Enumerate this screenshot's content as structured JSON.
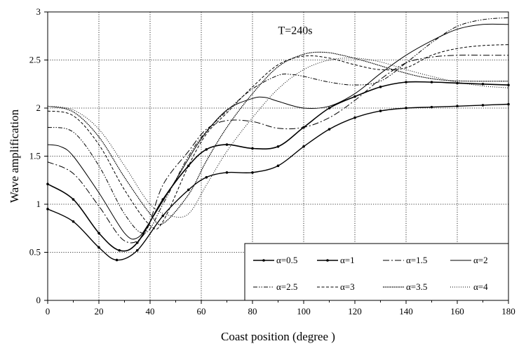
{
  "chart_data": {
    "type": "line",
    "title": "",
    "annotation": "T=240s",
    "xlabel": "Coast position (degree )",
    "ylabel": "Wave amplification",
    "xlim": [
      0,
      180
    ],
    "ylim": [
      0,
      3
    ],
    "xticks": [
      0,
      20,
      40,
      60,
      80,
      100,
      120,
      140,
      160,
      180
    ],
    "yticks": [
      0,
      0.5,
      1,
      1.5,
      2,
      2.5,
      3
    ],
    "xtick_labels": [
      "0",
      "20",
      "40",
      "60",
      "80",
      "100",
      "120",
      "140",
      "160",
      "180"
    ],
    "ytick_labels": [
      "0",
      "0.5",
      "1",
      "1.5",
      "2",
      "2.5",
      "3"
    ],
    "grid": true,
    "legend_position": "bottom-right",
    "series": [
      {
        "name": "α=0.5",
        "style": "solid-marker",
        "x": [
          0,
          10,
          20,
          27,
          35,
          45,
          55,
          62,
          70,
          80,
          90,
          100,
          110,
          120,
          130,
          140,
          150,
          160,
          170,
          180
        ],
        "y": [
          0.95,
          0.82,
          0.55,
          0.42,
          0.52,
          0.88,
          1.15,
          1.28,
          1.33,
          1.33,
          1.4,
          1.6,
          1.78,
          1.9,
          1.97,
          2.0,
          2.01,
          2.02,
          2.03,
          2.04
        ]
      },
      {
        "name": "α=1",
        "style": "solid-marker-thick",
        "x": [
          0,
          10,
          20,
          28,
          35,
          45,
          55,
          62,
          70,
          80,
          90,
          100,
          110,
          120,
          130,
          140,
          150,
          160,
          170,
          180
        ],
        "y": [
          1.21,
          1.05,
          0.7,
          0.52,
          0.6,
          1.05,
          1.4,
          1.57,
          1.62,
          1.58,
          1.6,
          1.8,
          2.0,
          2.12,
          2.22,
          2.27,
          2.27,
          2.26,
          2.25,
          2.24
        ]
      },
      {
        "name": "α=1.5",
        "style": "dashdot",
        "x": [
          0,
          10,
          20,
          30,
          38,
          45,
          55,
          62,
          70,
          80,
          90,
          100,
          110,
          120,
          130,
          140,
          150,
          160,
          170,
          180
        ],
        "y": [
          1.44,
          1.32,
          0.98,
          0.62,
          0.7,
          1.2,
          1.55,
          1.78,
          1.87,
          1.86,
          1.79,
          1.8,
          1.9,
          2.08,
          2.3,
          2.47,
          2.53,
          2.55,
          2.55,
          2.55
        ]
      },
      {
        "name": "α=2",
        "style": "solid",
        "x": [
          0,
          5,
          10,
          20,
          30,
          35,
          40,
          50,
          60,
          70,
          80,
          85,
          90,
          100,
          110,
          120,
          130,
          140,
          150,
          160,
          170,
          180
        ],
        "y": [
          1.62,
          1.6,
          1.5,
          1.12,
          0.7,
          0.65,
          0.82,
          1.25,
          1.68,
          1.98,
          2.1,
          2.11,
          2.07,
          2.0,
          2.02,
          2.15,
          2.36,
          2.55,
          2.7,
          2.82,
          2.87,
          2.87
        ]
      },
      {
        "name": "α=2.5",
        "style": "dashdotdot",
        "x": [
          0,
          10,
          20,
          30,
          38,
          45,
          55,
          62,
          70,
          80,
          90,
          95,
          100,
          110,
          120,
          130,
          140,
          150,
          160,
          170,
          180
        ],
        "y": [
          1.8,
          1.75,
          1.4,
          0.9,
          0.7,
          1.0,
          1.5,
          1.76,
          1.97,
          2.2,
          2.34,
          2.35,
          2.33,
          2.27,
          2.24,
          2.28,
          2.47,
          2.68,
          2.85,
          2.92,
          2.94
        ]
      },
      {
        "name": "α=3",
        "style": "dashed",
        "x": [
          0,
          10,
          20,
          30,
          40,
          45,
          55,
          62,
          70,
          80,
          90,
          100,
          110,
          120,
          130,
          140,
          150,
          160,
          170,
          180
        ],
        "y": [
          1.97,
          1.92,
          1.62,
          1.15,
          0.78,
          0.82,
          1.4,
          1.73,
          1.95,
          2.22,
          2.45,
          2.54,
          2.52,
          2.45,
          2.4,
          2.42,
          2.55,
          2.62,
          2.65,
          2.66
        ]
      },
      {
        "name": "α=3.5",
        "style": "dotted-dense",
        "x": [
          0,
          10,
          20,
          30,
          40,
          45,
          55,
          62,
          70,
          80,
          90,
          100,
          108,
          115,
          125,
          135,
          145,
          155,
          165,
          180
        ],
        "y": [
          2.02,
          1.96,
          1.7,
          1.28,
          0.9,
          0.8,
          1.1,
          1.45,
          1.8,
          2.15,
          2.43,
          2.56,
          2.58,
          2.55,
          2.48,
          2.4,
          2.33,
          2.29,
          2.28,
          2.28
        ]
      },
      {
        "name": "α=4",
        "style": "dotted",
        "x": [
          0,
          10,
          20,
          30,
          40,
          48,
          55,
          62,
          70,
          80,
          90,
          100,
          110,
          120,
          130,
          140,
          150,
          160,
          170,
          180
        ],
        "y": [
          2.02,
          1.98,
          1.78,
          1.4,
          1.0,
          0.88,
          0.9,
          1.2,
          1.55,
          1.9,
          2.2,
          2.4,
          2.5,
          2.52,
          2.48,
          2.4,
          2.33,
          2.27,
          2.23,
          2.21
        ]
      }
    ]
  }
}
